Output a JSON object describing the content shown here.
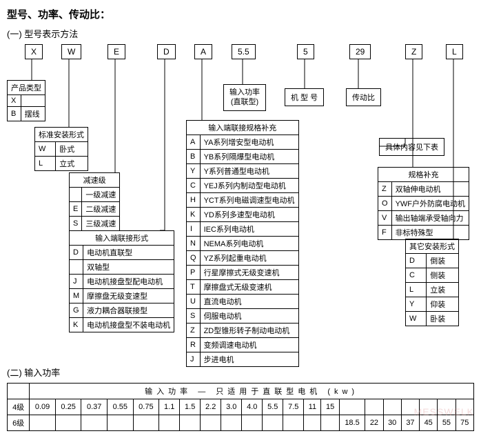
{
  "title": "型号、功率、传动比：",
  "sub1": "(一) 型号表示方法",
  "sub2": "(二) 输入功率",
  "topcodes": [
    "X",
    "W",
    "E",
    "D",
    "A",
    "5.5",
    "5",
    "29",
    "Z",
    "L"
  ],
  "lbl_power": "输入功率\n(直联型)",
  "lbl_model": "机 型 号",
  "lbl_ratio": "传动比",
  "lbl_detail": "具体内容见下表",
  "t_product": {
    "hdr": "产品类型",
    "rows": [
      [
        "X",
        ""
      ],
      [
        "B",
        "摆线"
      ]
    ]
  },
  "t_install": {
    "hdr": "标准安装形式",
    "rows": [
      [
        "W",
        "卧式"
      ],
      [
        "L",
        "立式"
      ]
    ]
  },
  "t_reduce": {
    "hdr": "减速级",
    "rows": [
      [
        "",
        "一级减速"
      ],
      [
        "E",
        "二级减速"
      ],
      [
        "S",
        "三级减速"
      ]
    ]
  },
  "t_conn": {
    "hdr": "输入端联接形式",
    "rows": [
      [
        "D",
        "电动机直联型"
      ],
      [
        "",
        "双轴型"
      ],
      [
        "J",
        "电动机接盘型配电动机"
      ],
      [
        "M",
        "摩擦盘无级变速型"
      ],
      [
        "G",
        "液力耦合器联接型"
      ],
      [
        "K",
        "电动机接盘型不装电动机"
      ]
    ]
  },
  "t_motor": {
    "hdr": "输入端联接规格补充",
    "rows": [
      [
        "A",
        "YA系列增安型电动机"
      ],
      [
        "B",
        "YB系列隔爆型电动机"
      ],
      [
        "Y",
        "Y系列普通型电动机"
      ],
      [
        "C",
        "YEJ系列内制动型电动机"
      ],
      [
        "H",
        "YCT系列电磁调速型电动机"
      ],
      [
        "K",
        "YD系列多速型电动机"
      ],
      [
        "I",
        "IEC系列电动机"
      ],
      [
        "N",
        "NEMA系列电动机"
      ],
      [
        "Q",
        "YZ系列起重电动机"
      ],
      [
        "P",
        "行星摩擦式无级变速机"
      ],
      [
        "T",
        "摩擦盘式无级变速机"
      ],
      [
        "U",
        "直流电动机"
      ],
      [
        "S",
        "伺服电动机"
      ],
      [
        "Z",
        "ZD型锥形转子制动电动机"
      ],
      [
        "R",
        "变频调速电动机"
      ],
      [
        "J",
        "步进电机"
      ]
    ]
  },
  "t_spec": {
    "hdr": "规格补充",
    "rows": [
      [
        "Z",
        "双轴伸电动机"
      ],
      [
        "O",
        "YWF户外防腐电动机"
      ],
      [
        "V",
        "输出轴端承受轴向力"
      ],
      [
        "F",
        "非标特殊型"
      ]
    ]
  },
  "t_other": {
    "hdr": "其它安装形式",
    "rows": [
      [
        "D",
        "倒装"
      ],
      [
        "C",
        "侧装"
      ],
      [
        "L",
        "立装"
      ],
      [
        "Y",
        "仰装"
      ],
      [
        "W",
        "卧装"
      ]
    ]
  },
  "powerhdr": "输入功率 — 只适用于直联型电机 (kw)",
  "row4": {
    "lbl": "4级",
    "v": [
      "0.09",
      "0.25",
      "0.37",
      "0.55",
      "0.75",
      "1.1",
      "1.5",
      "2.2",
      "3.0",
      "4.0",
      "5.5",
      "7.5",
      "11",
      "15",
      "",
      "",
      "",
      "",
      "",
      ""
    ]
  },
  "row6": {
    "lbl": "6级",
    "v": [
      "",
      "",
      "",
      "",
      "",
      "",
      "",
      "",
      "",
      "",
      "",
      "",
      "",
      "",
      "18.5",
      "22",
      "30",
      "37",
      "45",
      "55",
      "75"
    ]
  },
  "watermark": "MESSWELK",
  "colors": {
    "line": "#000",
    "wm": "#d99"
  }
}
